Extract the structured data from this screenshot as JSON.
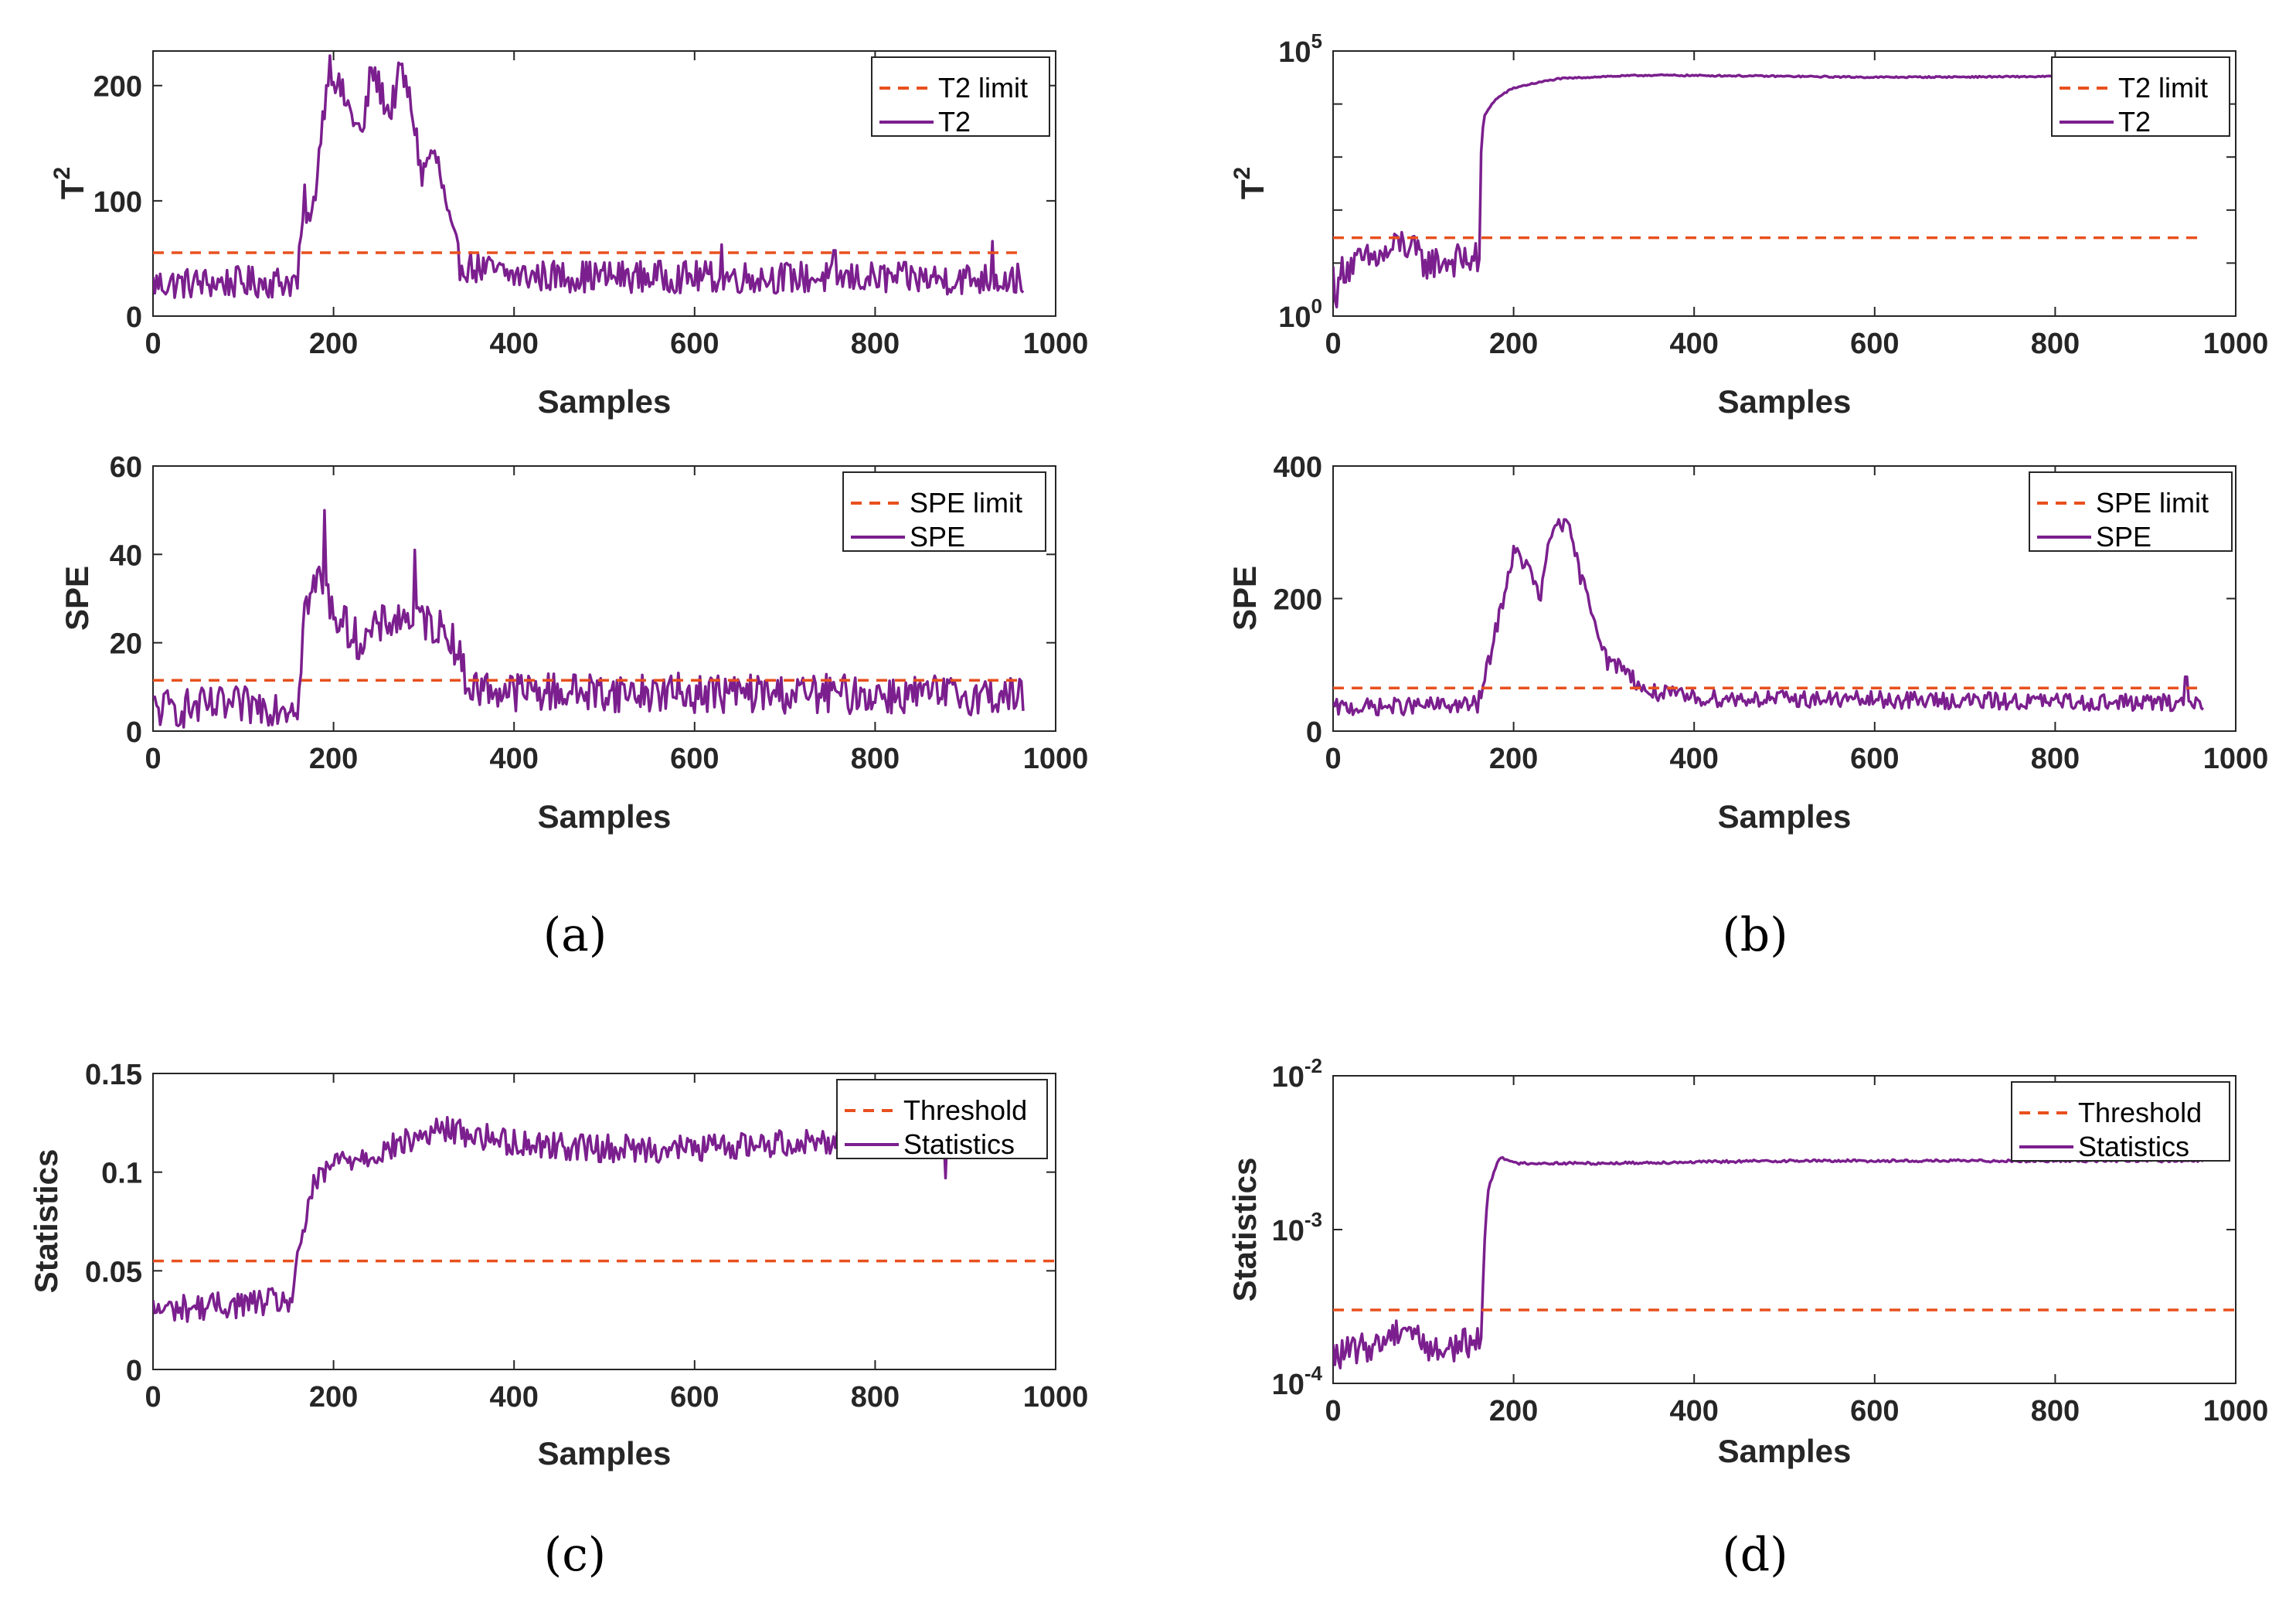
{
  "colors": {
    "limit": "#E8501E",
    "stat": "#7B1F8E",
    "axis": "#262626"
  },
  "chart_data": [
    {
      "id": "a1",
      "type": "line",
      "scale": "linear",
      "xlabel": "Samples",
      "ylabel_base": "T",
      "ylabel_sup": "2",
      "xlim": [
        0,
        1000
      ],
      "ylim": [
        0,
        230
      ],
      "xticks": [
        "0",
        "200",
        "400",
        "600",
        "800",
        "1000"
      ],
      "yticks": [
        {
          "v": 0,
          "t": "0"
        },
        {
          "v": 100,
          "t": "100"
        },
        {
          "v": 200,
          "t": "200"
        }
      ],
      "limit_value": 55,
      "legend": [
        "T2 limit",
        "T2"
      ],
      "stat_profile": [
        [
          0,
          28
        ],
        [
          160,
          30
        ],
        [
          168,
          100
        ],
        [
          175,
          75
        ],
        [
          185,
          150
        ],
        [
          195,
          220
        ],
        [
          205,
          200
        ],
        [
          220,
          175
        ],
        [
          232,
          155
        ],
        [
          242,
          215
        ],
        [
          255,
          190
        ],
        [
          262,
          175
        ],
        [
          275,
          215
        ],
        [
          288,
          175
        ],
        [
          298,
          120
        ],
        [
          306,
          140
        ],
        [
          315,
          135
        ],
        [
          328,
          80
        ],
        [
          340,
          45
        ],
        [
          400,
          35
        ],
        [
          965,
          32
        ]
      ],
      "noise": 14,
      "n": 965,
      "spikes": [
        [
          630,
          62
        ],
        [
          755,
          57
        ],
        [
          930,
          65
        ]
      ]
    },
    {
      "id": "b1",
      "type": "line",
      "scale": "log",
      "xlabel": "Samples",
      "ylabel_base": "T",
      "ylabel_sup": "2",
      "xlim": [
        0,
        1000
      ],
      "ylim_exp": [
        0,
        5
      ],
      "xticks": [
        "0",
        "200",
        "400",
        "600",
        "800",
        "1000"
      ],
      "yticks_exp": [
        {
          "e": 0,
          "b": "10",
          "s": "0"
        },
        {
          "e": 5,
          "b": "10",
          "s": "5"
        }
      ],
      "limit_value": 30,
      "legend": [
        "T2 limit",
        "T2"
      ],
      "stat_profile": [
        [
          0,
          6
        ],
        [
          5,
          1.5
        ],
        [
          10,
          8
        ],
        [
          60,
          14
        ],
        [
          75,
          25
        ],
        [
          100,
          10
        ],
        [
          158,
          12
        ],
        [
          163,
          9
        ],
        [
          168,
          6000
        ],
        [
          180,
          12000
        ],
        [
          200,
          20000
        ],
        [
          250,
          30000
        ],
        [
          300,
          33000
        ],
        [
          350,
          35000
        ],
        [
          450,
          34000
        ],
        [
          600,
          32000
        ],
        [
          800,
          33000
        ],
        [
          965,
          33000
        ]
      ],
      "noise_pre": 0.45,
      "noise_post": 0.02,
      "break": 163,
      "n": 965,
      "spikes": []
    },
    {
      "id": "a2",
      "type": "line",
      "scale": "linear",
      "xlabel": "Samples",
      "ylabel": "SPE",
      "xlim": [
        0,
        1000
      ],
      "ylim": [
        0,
        60
      ],
      "xticks": [
        "0",
        "200",
        "400",
        "600",
        "800",
        "1000"
      ],
      "yticks": [
        {
          "v": 0,
          "t": "0"
        },
        {
          "v": 20,
          "t": "20"
        },
        {
          "v": 40,
          "t": "40"
        },
        {
          "v": 60,
          "t": "60"
        }
      ],
      "limit_value": 11.5,
      "legend": [
        "SPE limit",
        "SPE"
      ],
      "stat_profile": [
        [
          0,
          5
        ],
        [
          160,
          6
        ],
        [
          168,
          28
        ],
        [
          185,
          35
        ],
        [
          200,
          27
        ],
        [
          230,
          20
        ],
        [
          260,
          25
        ],
        [
          290,
          26
        ],
        [
          330,
          22
        ],
        [
          350,
          10
        ],
        [
          400,
          9
        ],
        [
          965,
          8
        ]
      ],
      "noise": 4.5,
      "n": 965,
      "spikes": [
        [
          190,
          50
        ],
        [
          290,
          41
        ]
      ]
    },
    {
      "id": "b2",
      "type": "line",
      "scale": "linear",
      "xlabel": "Samples",
      "ylabel": "SPE",
      "xlim": [
        0,
        1000
      ],
      "ylim": [
        0,
        400
      ],
      "xticks": [
        "0",
        "200",
        "400",
        "600",
        "800",
        "1000"
      ],
      "yticks": [
        {
          "v": 0,
          "t": "0"
        },
        {
          "v": 200,
          "t": "200"
        },
        {
          "v": 400,
          "t": "400"
        }
      ],
      "limit_value": 65,
      "legend": [
        "SPE limit",
        "SPE"
      ],
      "stat_profile": [
        [
          0,
          35
        ],
        [
          160,
          40
        ],
        [
          165,
          60
        ],
        [
          180,
          150
        ],
        [
          200,
          270
        ],
        [
          215,
          250
        ],
        [
          230,
          200
        ],
        [
          240,
          290
        ],
        [
          250,
          320
        ],
        [
          262,
          300
        ],
        [
          275,
          230
        ],
        [
          290,
          170
        ],
        [
          305,
          100
        ],
        [
          320,
          100
        ],
        [
          345,
          60
        ],
        [
          400,
          50
        ],
        [
          965,
          42
        ]
      ],
      "noise": 13,
      "n": 965,
      "spikes": [
        [
          945,
          82
        ]
      ]
    },
    {
      "id": "c",
      "type": "line",
      "scale": "linear",
      "xlabel": "Samples",
      "ylabel": "Statistics",
      "xlim": [
        0,
        1000
      ],
      "ylim": [
        0,
        0.15
      ],
      "xticks": [
        "0",
        "200",
        "400",
        "600",
        "800",
        "1000"
      ],
      "yticks": [
        {
          "v": 0,
          "t": "0"
        },
        {
          "v": 0.05,
          "t": "0.05"
        },
        {
          "v": 0.1,
          "t": "0.1"
        },
        {
          "v": 0.15,
          "t": "0.15"
        }
      ],
      "limit_value": 0.055,
      "legend": [
        "Threshold",
        "Statistics"
      ],
      "stat_profile": [
        [
          0,
          0.03
        ],
        [
          155,
          0.035
        ],
        [
          162,
          0.06
        ],
        [
          175,
          0.09
        ],
        [
          200,
          0.105
        ],
        [
          250,
          0.11
        ],
        [
          320,
          0.122
        ],
        [
          400,
          0.115
        ],
        [
          500,
          0.112
        ],
        [
          600,
          0.112
        ],
        [
          700,
          0.115
        ],
        [
          800,
          0.117
        ],
        [
          880,
          0.117
        ]
      ],
      "noise": 0.007,
      "n": 880,
      "spikes": [
        [
          878,
          0.097
        ]
      ]
    },
    {
      "id": "d",
      "type": "line",
      "scale": "log",
      "xlabel": "Samples",
      "ylabel": "Statistics",
      "xlim": [
        0,
        1000
      ],
      "ylim_exp": [
        -4,
        -2
      ],
      "xticks": [
        "0",
        "200",
        "400",
        "600",
        "800",
        "1000"
      ],
      "yticks_exp": [
        {
          "e": -4,
          "b": "10",
          "s": "-4"
        },
        {
          "e": -3,
          "b": "10",
          "s": "-3"
        },
        {
          "e": -2,
          "b": "10",
          "s": "-2"
        }
      ],
      "limit_value": 0.0003,
      "legend": [
        "Threshold",
        "Statistics"
      ],
      "stat_profile": [
        [
          0,
          0.00015
        ],
        [
          50,
          0.00018
        ],
        [
          80,
          0.00024
        ],
        [
          110,
          0.00016
        ],
        [
          160,
          0.00019
        ],
        [
          165,
          0.00018
        ],
        [
          172,
          0.0018
        ],
        [
          185,
          0.003
        ],
        [
          200,
          0.0027
        ],
        [
          300,
          0.0027
        ],
        [
          500,
          0.0028
        ],
        [
          800,
          0.0028
        ],
        [
          965,
          0.0028
        ]
      ],
      "noise_pre": 0.14,
      "noise_post": 0.012,
      "break": 168,
      "n": 965,
      "spikes": []
    }
  ],
  "captions": {
    "a": "(a)",
    "b": "(b)",
    "c": "(c)",
    "d": "(d)"
  }
}
